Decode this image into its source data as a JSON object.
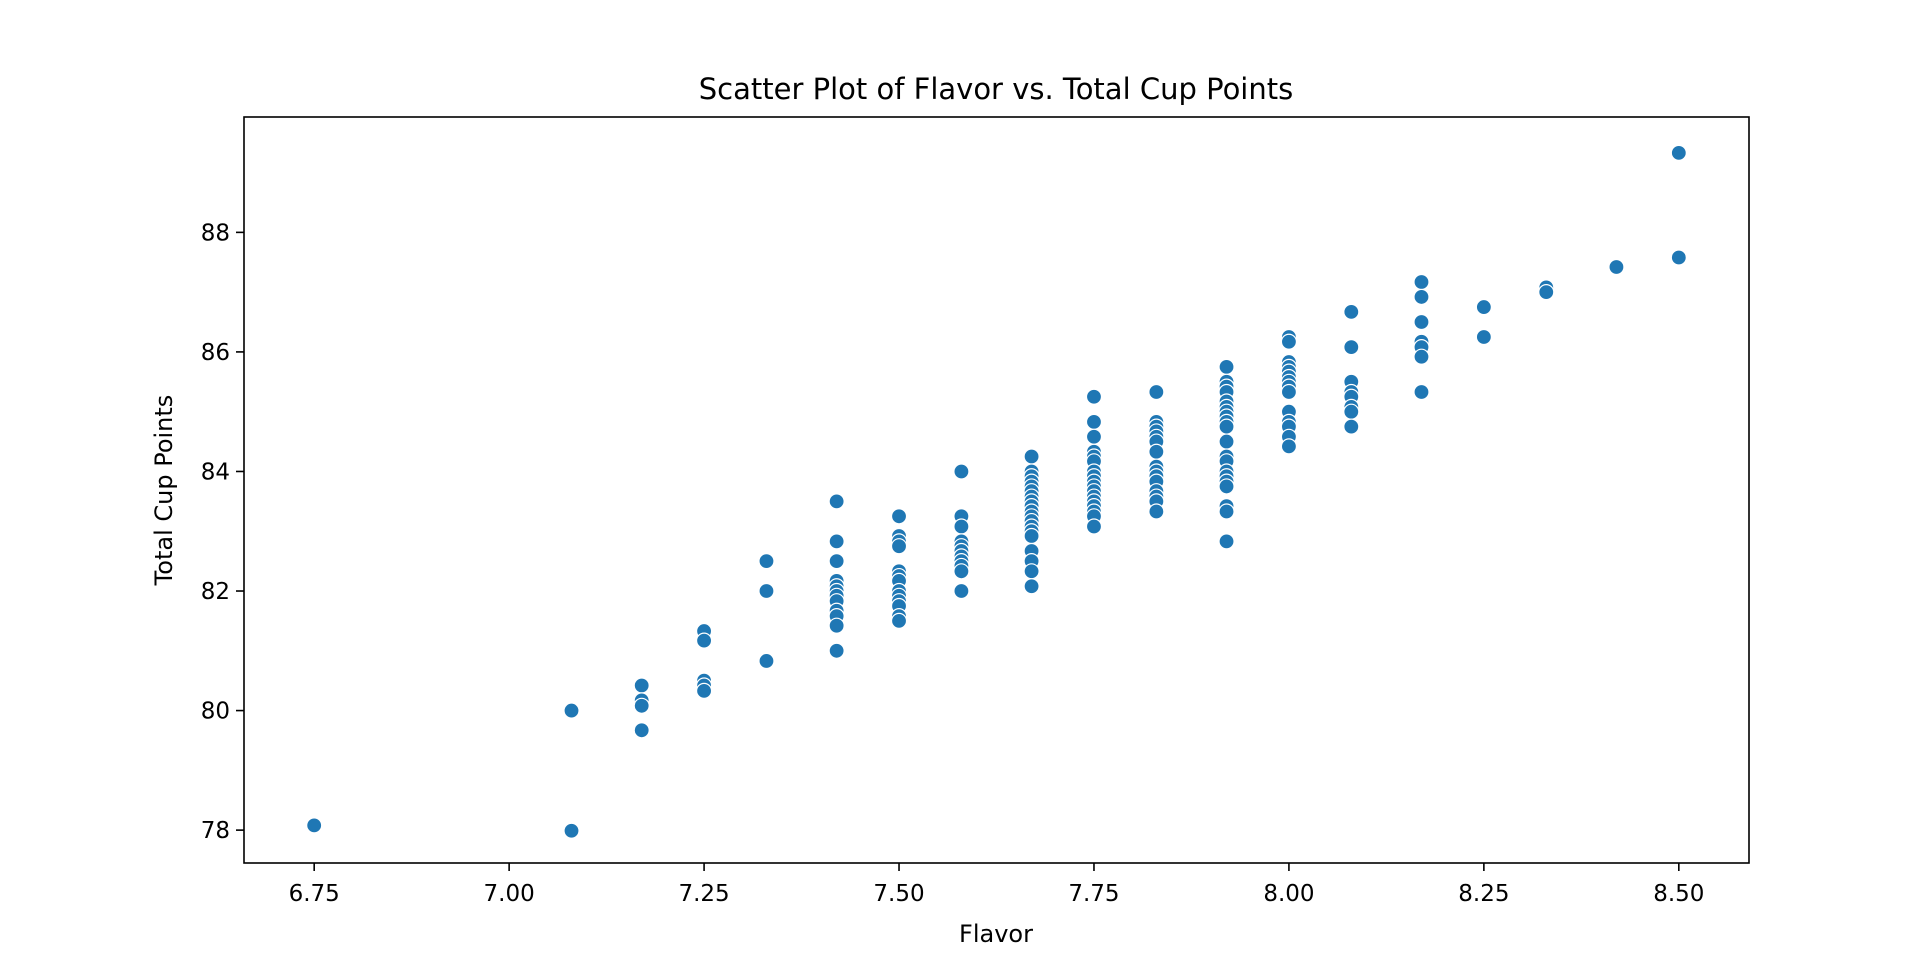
{
  "chart_data": {
    "type": "scatter",
    "title": "Scatter Plot of Flavor vs. Total Cup Points",
    "xlabel": "Flavor",
    "ylabel": "Total Cup Points",
    "xlim": [
      6.66,
      8.59
    ],
    "ylim": [
      77.45,
      89.93
    ],
    "xticks": [
      6.75,
      7.0,
      7.25,
      7.5,
      7.75,
      8.0,
      8.25,
      8.5
    ],
    "xtick_labels": [
      "6.75",
      "7.00",
      "7.25",
      "7.50",
      "7.75",
      "8.00",
      "8.25",
      "8.50"
    ],
    "yticks": [
      78,
      80,
      82,
      84,
      86,
      88
    ],
    "ytick_labels": [
      "78",
      "80",
      "82",
      "84",
      "86",
      "88"
    ],
    "grid": false,
    "legend": "none",
    "marker_color": "#1f77b4",
    "points": [
      [
        6.75,
        78.08
      ],
      [
        7.08,
        80.0
      ],
      [
        7.08,
        77.99
      ],
      [
        7.17,
        80.42
      ],
      [
        7.17,
        80.17
      ],
      [
        7.17,
        80.08
      ],
      [
        7.17,
        79.67
      ],
      [
        7.25,
        81.33
      ],
      [
        7.25,
        81.17
      ],
      [
        7.25,
        80.5
      ],
      [
        7.25,
        80.42
      ],
      [
        7.25,
        80.33
      ],
      [
        7.33,
        82.5
      ],
      [
        7.33,
        82.0
      ],
      [
        7.33,
        80.83
      ],
      [
        7.42,
        83.5
      ],
      [
        7.42,
        82.83
      ],
      [
        7.42,
        82.5
      ],
      [
        7.42,
        82.17
      ],
      [
        7.42,
        82.08
      ],
      [
        7.42,
        82.0
      ],
      [
        7.42,
        81.92
      ],
      [
        7.42,
        81.83
      ],
      [
        7.42,
        81.67
      ],
      [
        7.42,
        81.58
      ],
      [
        7.42,
        81.42
      ],
      [
        7.42,
        81.0
      ],
      [
        7.5,
        83.25
      ],
      [
        7.5,
        82.92
      ],
      [
        7.5,
        82.83
      ],
      [
        7.5,
        82.75
      ],
      [
        7.5,
        82.33
      ],
      [
        7.5,
        82.25
      ],
      [
        7.5,
        82.17
      ],
      [
        7.5,
        82.0
      ],
      [
        7.5,
        81.92
      ],
      [
        7.5,
        81.83
      ],
      [
        7.5,
        81.75
      ],
      [
        7.5,
        81.58
      ],
      [
        7.5,
        81.5
      ],
      [
        7.58,
        84.0
      ],
      [
        7.58,
        83.25
      ],
      [
        7.58,
        83.08
      ],
      [
        7.58,
        82.83
      ],
      [
        7.58,
        82.75
      ],
      [
        7.58,
        82.67
      ],
      [
        7.58,
        82.58
      ],
      [
        7.58,
        82.5
      ],
      [
        7.58,
        82.42
      ],
      [
        7.58,
        82.33
      ],
      [
        7.58,
        82.0
      ],
      [
        7.67,
        84.25
      ],
      [
        7.67,
        84.0
      ],
      [
        7.67,
        83.92
      ],
      [
        7.67,
        83.83
      ],
      [
        7.67,
        83.75
      ],
      [
        7.67,
        83.67
      ],
      [
        7.67,
        83.58
      ],
      [
        7.67,
        83.5
      ],
      [
        7.67,
        83.42
      ],
      [
        7.67,
        83.33
      ],
      [
        7.67,
        83.25
      ],
      [
        7.67,
        83.17
      ],
      [
        7.67,
        83.08
      ],
      [
        7.67,
        83.0
      ],
      [
        7.67,
        82.92
      ],
      [
        7.67,
        82.67
      ],
      [
        7.67,
        82.5
      ],
      [
        7.67,
        82.33
      ],
      [
        7.67,
        82.08
      ],
      [
        7.75,
        85.25
      ],
      [
        7.75,
        84.83
      ],
      [
        7.75,
        84.58
      ],
      [
        7.75,
        84.33
      ],
      [
        7.75,
        84.25
      ],
      [
        7.75,
        84.17
      ],
      [
        7.75,
        84.0
      ],
      [
        7.75,
        83.92
      ],
      [
        7.75,
        83.83
      ],
      [
        7.75,
        83.75
      ],
      [
        7.75,
        83.67
      ],
      [
        7.75,
        83.58
      ],
      [
        7.75,
        83.5
      ],
      [
        7.75,
        83.42
      ],
      [
        7.75,
        83.33
      ],
      [
        7.75,
        83.25
      ],
      [
        7.75,
        83.08
      ],
      [
        7.83,
        85.33
      ],
      [
        7.83,
        84.83
      ],
      [
        7.83,
        84.75
      ],
      [
        7.83,
        84.67
      ],
      [
        7.83,
        84.58
      ],
      [
        7.83,
        84.5
      ],
      [
        7.83,
        84.33
      ],
      [
        7.83,
        84.08
      ],
      [
        7.83,
        84.0
      ],
      [
        7.83,
        83.92
      ],
      [
        7.83,
        83.83
      ],
      [
        7.83,
        83.67
      ],
      [
        7.83,
        83.58
      ],
      [
        7.83,
        83.5
      ],
      [
        7.83,
        83.33
      ],
      [
        7.92,
        85.75
      ],
      [
        7.92,
        85.5
      ],
      [
        7.92,
        85.42
      ],
      [
        7.92,
        85.33
      ],
      [
        7.92,
        85.17
      ],
      [
        7.92,
        85.08
      ],
      [
        7.92,
        85.0
      ],
      [
        7.92,
        84.92
      ],
      [
        7.92,
        84.83
      ],
      [
        7.92,
        84.75
      ],
      [
        7.92,
        84.5
      ],
      [
        7.92,
        84.25
      ],
      [
        7.92,
        84.17
      ],
      [
        7.92,
        84.0
      ],
      [
        7.92,
        83.92
      ],
      [
        7.92,
        83.83
      ],
      [
        7.92,
        83.75
      ],
      [
        7.92,
        83.42
      ],
      [
        7.92,
        83.33
      ],
      [
        7.92,
        82.83
      ],
      [
        8.0,
        86.25
      ],
      [
        8.0,
        86.17
      ],
      [
        8.0,
        85.83
      ],
      [
        8.0,
        85.75
      ],
      [
        8.0,
        85.67
      ],
      [
        8.0,
        85.58
      ],
      [
        8.0,
        85.5
      ],
      [
        8.0,
        85.42
      ],
      [
        8.0,
        85.33
      ],
      [
        8.0,
        85.0
      ],
      [
        8.0,
        84.83
      ],
      [
        8.0,
        84.75
      ],
      [
        8.0,
        84.58
      ],
      [
        8.0,
        84.42
      ],
      [
        8.08,
        86.67
      ],
      [
        8.08,
        86.08
      ],
      [
        8.08,
        85.5
      ],
      [
        8.08,
        85.33
      ],
      [
        8.08,
        85.25
      ],
      [
        8.08,
        85.08
      ],
      [
        8.08,
        85.0
      ],
      [
        8.08,
        84.75
      ],
      [
        8.17,
        87.17
      ],
      [
        8.17,
        86.92
      ],
      [
        8.17,
        86.5
      ],
      [
        8.17,
        86.17
      ],
      [
        8.17,
        86.08
      ],
      [
        8.17,
        85.92
      ],
      [
        8.17,
        85.33
      ],
      [
        8.25,
        86.75
      ],
      [
        8.25,
        86.25
      ],
      [
        8.33,
        87.08
      ],
      [
        8.33,
        87.0
      ],
      [
        8.42,
        87.42
      ],
      [
        8.5,
        89.33
      ],
      [
        8.5,
        87.58
      ]
    ]
  }
}
